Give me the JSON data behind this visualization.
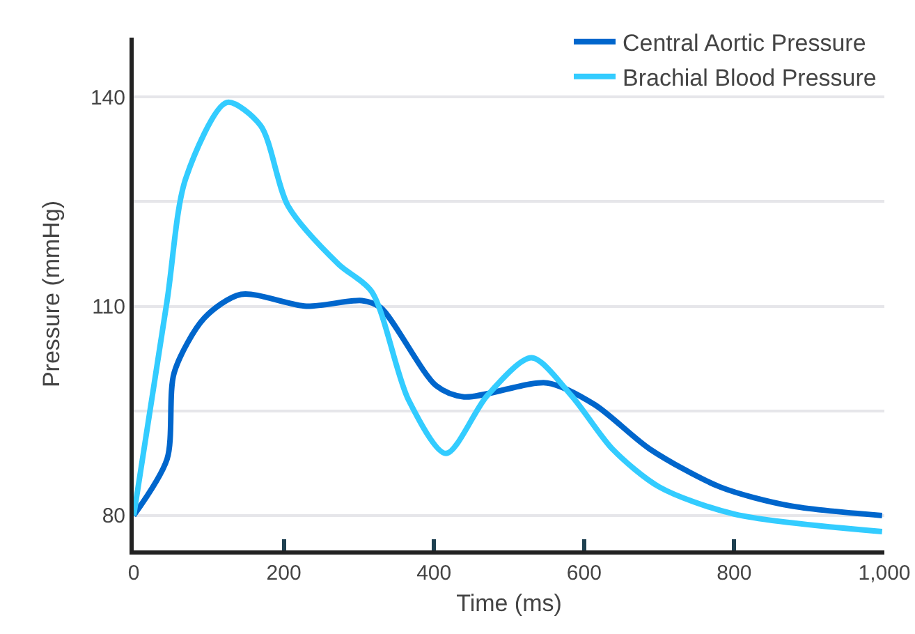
{
  "chart_data": {
    "type": "line",
    "xlabel": "Time (ms)",
    "ylabel": "Pressure (mmHg)",
    "xlim": [
      0,
      1000
    ],
    "xticks": [
      0,
      200,
      400,
      600,
      800,
      {
        "value": 1000,
        "label": "1,000"
      }
    ],
    "ylim": [
      75,
      148.5
    ],
    "yticks": [
      80,
      {
        "value": 95,
        "label": null
      },
      110,
      {
        "value": 125,
        "label": null
      },
      140
    ],
    "grid": "y",
    "legend": "top right",
    "marker": "none",
    "line_style": "solid",
    "series": [
      {
        "name": "Central Aortic Pressure",
        "color": "#0066cc",
        "x": [
          0,
          44.5,
          54,
          94,
          143,
          230,
          304,
          329,
          403,
          440,
          551,
          614,
          688,
          781,
          874,
          997
        ],
        "values": [
          80,
          88.1,
          100.5,
          108.3,
          111.7,
          110,
          110.8,
          109.8,
          98.6,
          97,
          99,
          95.9,
          89.5,
          84.1,
          81.4,
          80
        ]
      },
      {
        "name": "Brachial Blood Pressure",
        "color": "#33ccff",
        "x": [
          0,
          44.5,
          69,
          124,
          169,
          206,
          273,
          317,
          366,
          416,
          471,
          530,
          583,
          638,
          700,
          800,
          997
        ],
        "values": [
          80,
          110.8,
          128.2,
          139.2,
          135.9,
          124.3,
          116,
          112.1,
          96.6,
          88.9,
          97.2,
          102.6,
          97.2,
          89.5,
          84.1,
          80.2,
          77.7
        ]
      }
    ]
  }
}
